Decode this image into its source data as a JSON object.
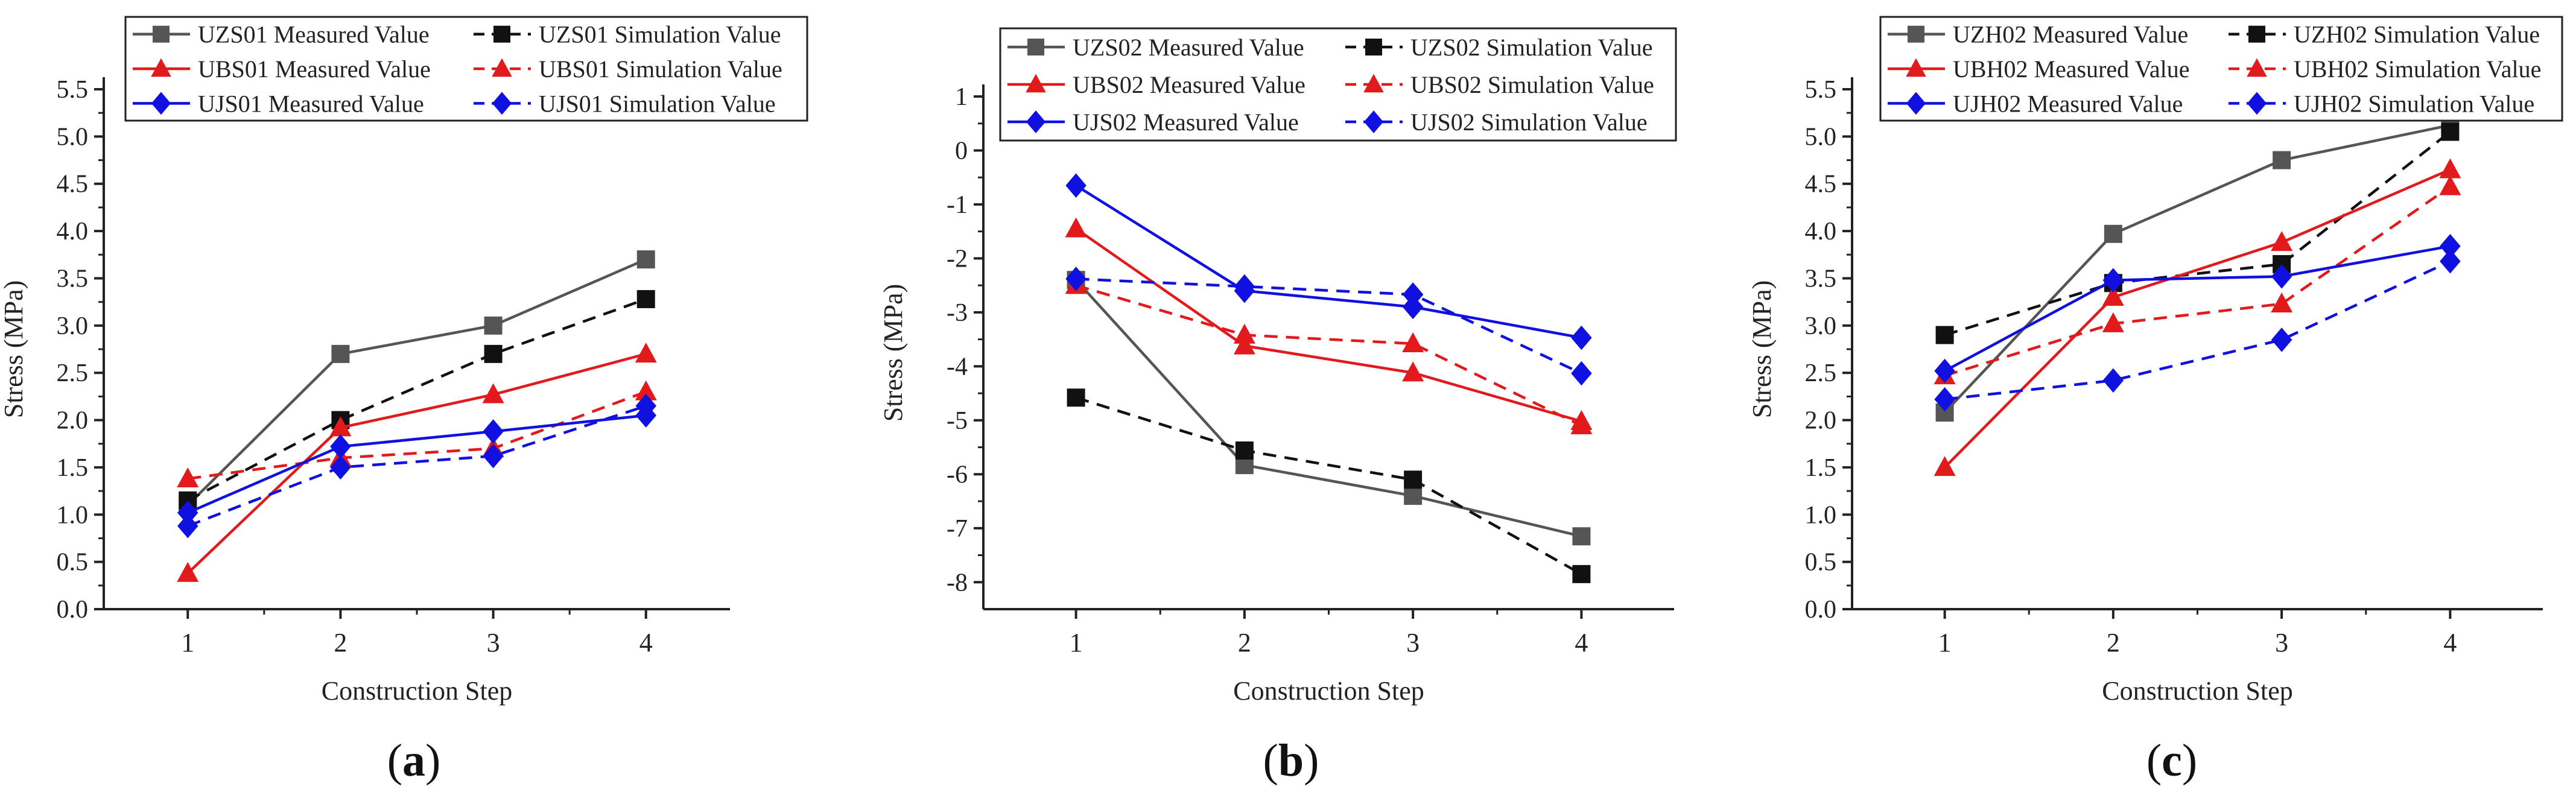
{
  "chart_data": [
    {
      "type": "line",
      "panel_label": "a",
      "xlabel": "Construction Step",
      "ylabel": "Stress (MPa)",
      "x": [
        1,
        2,
        3,
        4
      ],
      "xlim": [
        0.45,
        4.55
      ],
      "ylim": [
        0.0,
        5.5
      ],
      "yticks": [
        0.0,
        0.5,
        1.0,
        1.5,
        2.0,
        2.5,
        3.0,
        3.5,
        4.0,
        4.5,
        5.0,
        5.5
      ],
      "ytick_labels": [
        "0.0",
        "0.5",
        "1.0",
        "1.5",
        "2.0",
        "2.5",
        "3.0",
        "3.5",
        "4.0",
        "4.5",
        "5.0",
        "5.5"
      ],
      "xtick_labels": [
        "1",
        "2",
        "3",
        "4"
      ],
      "legend_position": "top-left",
      "series": [
        {
          "name": "UZS01 Measured Value",
          "color": "#555555",
          "dash": "solid",
          "marker": "square",
          "values": [
            1.1,
            2.7,
            3.0,
            3.7
          ]
        },
        {
          "name": "UZS01 Simulation Value",
          "color": "#111111",
          "dash": "dashed",
          "marker": "square",
          "values": [
            1.15,
            2.0,
            2.7,
            3.28
          ]
        },
        {
          "name": "UBS01 Measured Value",
          "color": "#e31a1c",
          "dash": "solid",
          "marker": "triangle",
          "values": [
            0.38,
            1.92,
            2.27,
            2.7
          ]
        },
        {
          "name": "UBS01 Simulation Value",
          "color": "#e31a1c",
          "dash": "dashed",
          "marker": "triangle",
          "values": [
            1.38,
            1.6,
            1.7,
            2.3
          ]
        },
        {
          "name": "UJS01 Measured Value",
          "color": "#1010e0",
          "dash": "solid",
          "marker": "diamond",
          "values": [
            1.02,
            1.72,
            1.88,
            2.05
          ]
        },
        {
          "name": "UJS01  Simulation Value",
          "color": "#1010e0",
          "dash": "dashed",
          "marker": "diamond",
          "values": [
            0.88,
            1.5,
            1.62,
            2.15
          ]
        }
      ]
    },
    {
      "type": "line",
      "panel_label": "b",
      "xlabel": "Construction Step",
      "ylabel": "Stress (MPa)",
      "x": [
        1,
        2,
        3,
        4
      ],
      "xlim": [
        0.45,
        4.55
      ],
      "ylim": [
        -8.5,
        1.0
      ],
      "yticks": [
        -8,
        -7,
        -6,
        -5,
        -4,
        -3,
        -2,
        -1,
        0,
        1
      ],
      "ytick_labels": [
        "-8",
        "-7",
        "-6",
        "-5",
        "-4",
        "-3",
        "-2",
        "-1",
        "0",
        "1"
      ],
      "xtick_labels": [
        "1",
        "2",
        "3",
        "4"
      ],
      "legend_position": "top-left",
      "series": [
        {
          "name": "UZS02 Measured Value",
          "color": "#555555",
          "dash": "solid",
          "marker": "square",
          "values": [
            -2.4,
            -5.83,
            -6.4,
            -7.15
          ]
        },
        {
          "name": "UZS02 Simulation Value",
          "color": "#111111",
          "dash": "dashed",
          "marker": "square",
          "values": [
            -4.58,
            -5.56,
            -6.1,
            -7.85
          ]
        },
        {
          "name": "UBS02 Measured Value",
          "color": "#e31a1c",
          "dash": "solid",
          "marker": "triangle",
          "values": [
            -1.45,
            -3.62,
            -4.12,
            -5.02
          ]
        },
        {
          "name": "UBS02 Simulation Value",
          "color": "#e31a1c",
          "dash": "dashed",
          "marker": "triangle",
          "values": [
            -2.5,
            -3.42,
            -3.58,
            -5.1
          ]
        },
        {
          "name": "UJS02 Measured Value",
          "color": "#1010e0",
          "dash": "solid",
          "marker": "diamond",
          "values": [
            -0.65,
            -2.6,
            -2.9,
            -3.47
          ]
        },
        {
          "name": "UJS02 Simulation Value",
          "color": "#1010e0",
          "dash": "dashed",
          "marker": "diamond",
          "values": [
            -2.38,
            -2.52,
            -2.67,
            -4.13
          ]
        }
      ]
    },
    {
      "type": "line",
      "panel_label": "c",
      "xlabel": "Construction Step",
      "ylabel": "Stress (MPa)",
      "x": [
        1,
        2,
        3,
        4
      ],
      "xlim": [
        0.45,
        4.55
      ],
      "ylim": [
        0.0,
        5.5
      ],
      "yticks": [
        0.0,
        0.5,
        1.0,
        1.5,
        2.0,
        2.5,
        3.0,
        3.5,
        4.0,
        4.5,
        5.0,
        5.5
      ],
      "ytick_labels": [
        "0.0",
        "0.5",
        "1.0",
        "1.5",
        "2.0",
        "2.5",
        "3.0",
        "3.5",
        "4.0",
        "4.5",
        "5.0",
        "5.5"
      ],
      "xtick_labels": [
        "1",
        "2",
        "3",
        "4"
      ],
      "legend_position": "top-left",
      "series": [
        {
          "name": "UZH02 Measured Value",
          "color": "#555555",
          "dash": "solid",
          "marker": "square",
          "values": [
            2.08,
            3.97,
            4.75,
            5.12
          ]
        },
        {
          "name": "UZH02 Simulation Value",
          "color": "#111111",
          "dash": "dashed",
          "marker": "square",
          "values": [
            2.9,
            3.45,
            3.65,
            5.05
          ]
        },
        {
          "name": "UBH02 Measured Value",
          "color": "#e31a1c",
          "dash": "solid",
          "marker": "triangle",
          "values": [
            1.5,
            3.3,
            3.88,
            4.65
          ]
        },
        {
          "name": "UBH02 Simulation Value",
          "color": "#e31a1c",
          "dash": "dashed",
          "marker": "triangle",
          "values": [
            2.47,
            3.02,
            3.23,
            4.47
          ]
        },
        {
          "name": "UJH02 Measured Value",
          "color": "#1010e0",
          "dash": "solid",
          "marker": "diamond",
          "values": [
            2.52,
            3.48,
            3.52,
            3.84
          ]
        },
        {
          "name": "UJH02 Simulation Value",
          "color": "#1010e0",
          "dash": "dashed",
          "marker": "diamond",
          "values": [
            2.22,
            2.42,
            2.85,
            3.68
          ]
        }
      ]
    }
  ]
}
